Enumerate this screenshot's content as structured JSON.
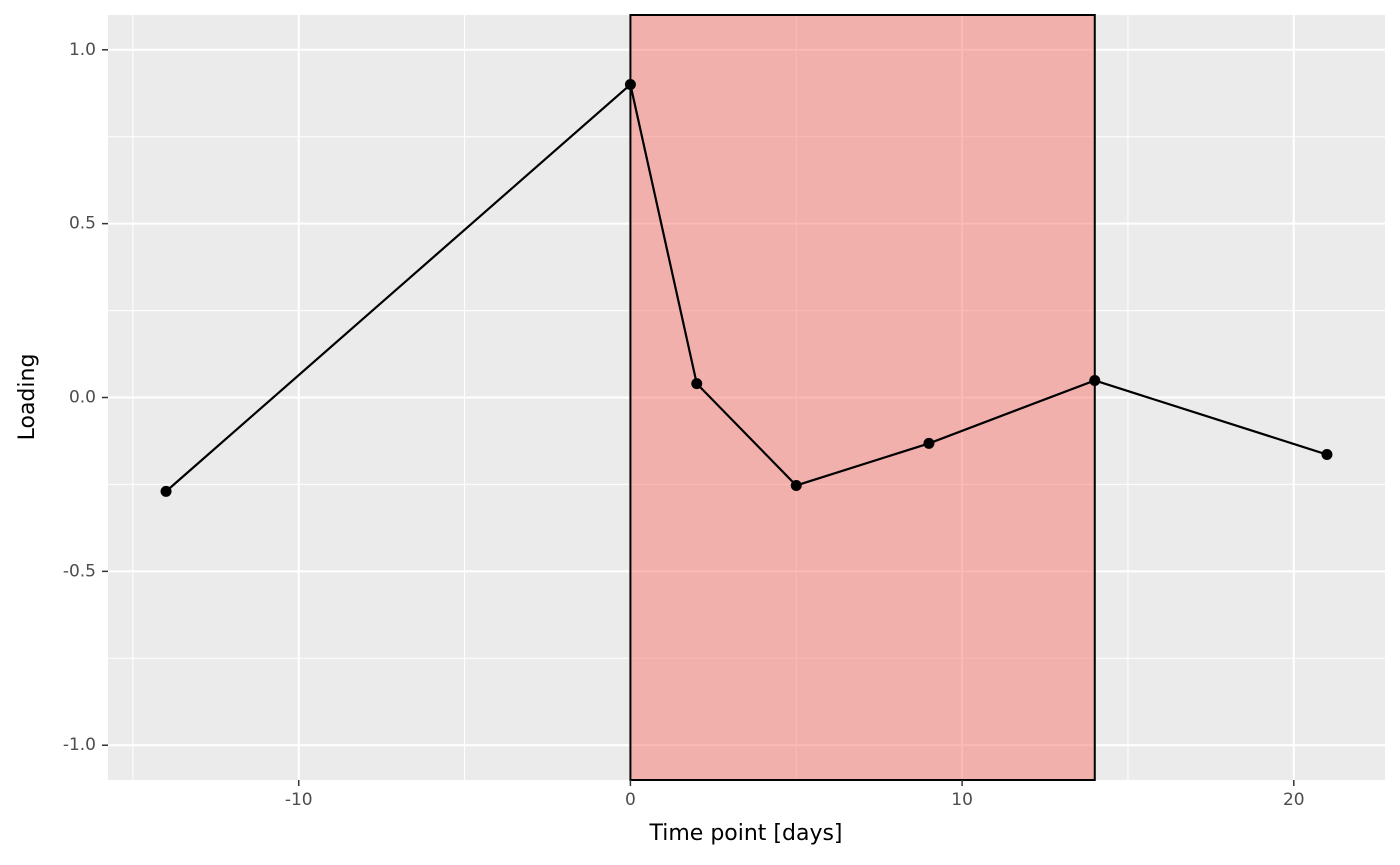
{
  "chart_data": {
    "type": "line",
    "x_label": "Time point [days]",
    "y_label": "Loading",
    "x": [
      -14,
      0,
      2,
      5,
      9,
      14,
      21
    ],
    "series": [
      {
        "color": "#000000",
        "values": [
          -0.27,
          0.9,
          0.04,
          -0.253,
          -0.132,
          0.049,
          -0.164
        ]
      }
    ],
    "highlight": [
      0,
      14
    ],
    "highlight_color": "#f8766d",
    "xlim": [
      -15.75,
      22.75
    ],
    "xticks": [
      -10,
      0,
      10,
      20
    ],
    "x_minor_ticks": [
      -15,
      -5,
      5,
      15
    ],
    "ylim": [
      -1.1,
      1.1
    ],
    "yticks": [
      {
        "value": -1,
        "label": "-1.0"
      },
      {
        "value": -0.5,
        "label": "-0.5"
      },
      {
        "value": 0,
        "label": "0.0"
      },
      {
        "value": 0.5,
        "label": "0.5"
      },
      {
        "value": 1,
        "label": "1.0"
      }
    ],
    "y_minor_ticks": [
      -0.75,
      -0.25,
      0.25,
      0.75
    ],
    "grid": true
  }
}
